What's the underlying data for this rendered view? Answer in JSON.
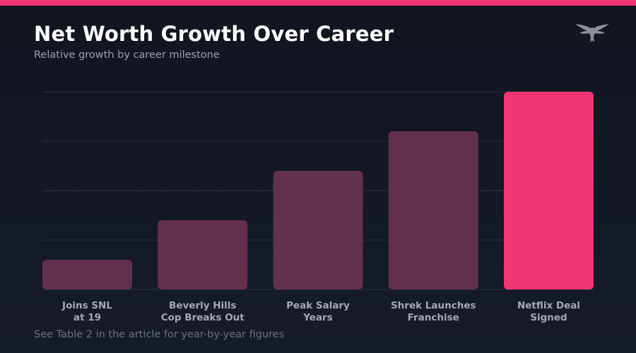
{
  "header": {
    "title": "Net Worth Growth Over Career",
    "subtitle": "Relative growth by career milestone"
  },
  "logo": {
    "icon": "eagle-icon",
    "color": "#8d909a"
  },
  "footnote": "See Table 2 in the article for year-by-year figures",
  "colors": {
    "accent": "#f03774",
    "bar": "#63304b",
    "grid": "#2c3140",
    "background": "#131826"
  },
  "chart_data": {
    "type": "bar",
    "title": "Net Worth Growth Over Career",
    "subtitle": "Relative growth by career milestone",
    "categories": [
      [
        "Joins SNL",
        "at 19"
      ],
      [
        "Beverly Hills",
        "Cop Breaks Out"
      ],
      [
        "Peak Salary",
        "Years"
      ],
      [
        "Shrek Launches",
        "Franchise"
      ],
      [
        "Netflix Deal",
        "Signed"
      ]
    ],
    "values": [
      15,
      35,
      60,
      80,
      100
    ],
    "highlight_index": 4,
    "ylim": [
      0,
      100
    ],
    "y_ticks_shown": false,
    "grid": true,
    "gridlines": [
      0,
      25,
      50,
      75,
      100
    ],
    "xlabel": "",
    "ylabel": ""
  }
}
